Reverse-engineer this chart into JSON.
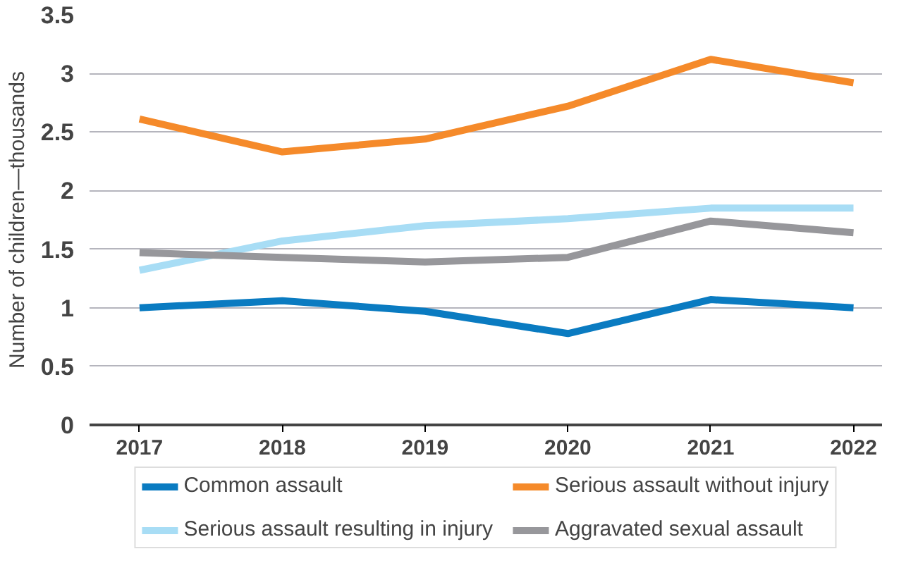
{
  "chart_data": {
    "type": "line",
    "ylabel": "Number of children—thousands",
    "categories": [
      "2017",
      "2018",
      "2019",
      "2020",
      "2021",
      "2022"
    ],
    "series": [
      {
        "name": "Common assault",
        "color": "#0a7bc1",
        "values": [
          1.0,
          1.06,
          0.97,
          0.78,
          1.07,
          1.0
        ]
      },
      {
        "name": "Serious assault without injury",
        "color": "#f58a2a",
        "values": [
          2.61,
          2.33,
          2.44,
          2.72,
          3.12,
          2.92
        ]
      },
      {
        "name": "Serious assault resulting in injury",
        "color": "#a8ddf5",
        "values": [
          1.32,
          1.57,
          1.7,
          1.76,
          1.85,
          1.85
        ]
      },
      {
        "name": "Aggravated sexual assault",
        "color": "#97979b",
        "values": [
          1.47,
          1.43,
          1.39,
          1.43,
          1.74,
          1.64
        ]
      }
    ],
    "ylim": [
      0,
      3.5
    ],
    "yticks": [
      0,
      0.5,
      1,
      1.5,
      2,
      2.5,
      3,
      3.5
    ],
    "grid": "y",
    "legend": "bottom",
    "marker": "none",
    "line_style": "solid"
  }
}
